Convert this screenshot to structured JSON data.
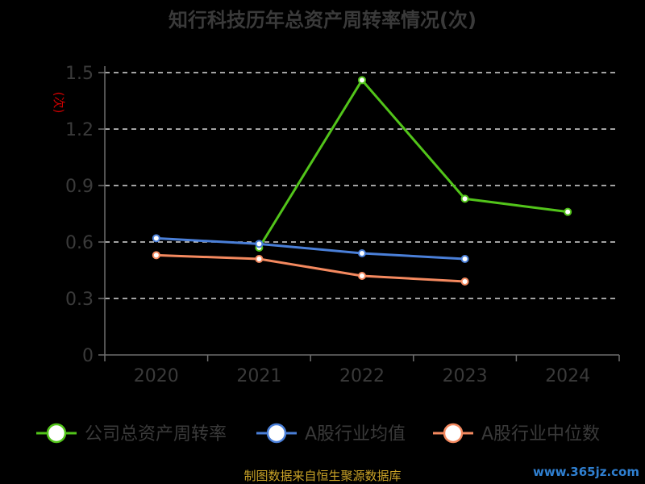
{
  "chart_data": {
    "type": "line",
    "title": "知行科技历年总资产周转率情况(次)",
    "ylabel": "(次)",
    "xlabel": "",
    "categories": [
      "2020",
      "2021",
      "2022",
      "2023",
      "2024"
    ],
    "yticks": [
      "0",
      "0.3",
      "0.6",
      "0.9",
      "1.2",
      "1.5"
    ],
    "ylim": [
      0,
      1.5
    ],
    "grid": true,
    "legend_position": "bottom",
    "series": [
      {
        "name": "公司总资产周转率",
        "color": "#52c41a",
        "values": [
          null,
          0.57,
          1.46,
          0.83,
          0.76
        ]
      },
      {
        "name": "A股行业均值",
        "color": "#4a7fd8",
        "values": [
          0.62,
          0.59,
          0.54,
          0.51,
          null
        ]
      },
      {
        "name": "A股行业中位数",
        "color": "#f4895f",
        "values": [
          0.53,
          0.51,
          0.42,
          0.39,
          null
        ]
      }
    ]
  },
  "footer": {
    "source": "制图数据来自恒生聚源数据库",
    "watermark": "www.365jz.com"
  }
}
